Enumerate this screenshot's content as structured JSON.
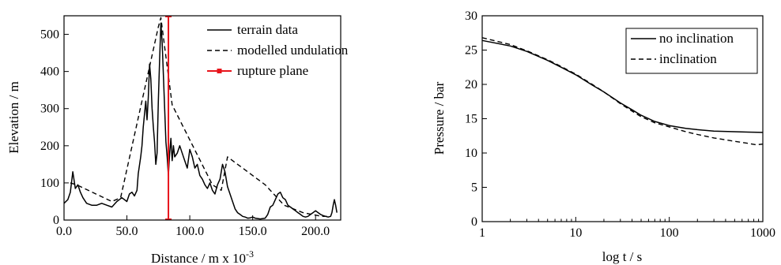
{
  "chart_data": [
    {
      "type": "line",
      "xlabel": "Distance / m x 10",
      "xlabel_sup": "-3",
      "ylabel": "Elevation / m",
      "xlim": [
        0,
        220
      ],
      "ylim": [
        0,
        550
      ],
      "xticks": [
        0,
        50,
        100,
        150,
        200
      ],
      "xtick_labels": [
        "0.0",
        "50.0",
        "100.0",
        "150.0",
        "200.0"
      ],
      "yticks": [
        0,
        100,
        200,
        300,
        400,
        500
      ],
      "ytick_labels": [
        "0",
        "100",
        "200",
        "300",
        "400",
        "500"
      ],
      "legend_position": "top-right",
      "series": [
        {
          "name": "terrain data",
          "style": "solid",
          "color": "#000000",
          "x": [
            0,
            3,
            5,
            7,
            9,
            11,
            13,
            15,
            18,
            22,
            26,
            30,
            34,
            38,
            42,
            46,
            48,
            50,
            52,
            54,
            56,
            58,
            59,
            61,
            62,
            63,
            65,
            66,
            67,
            68,
            69,
            70,
            71,
            72,
            73,
            74,
            75,
            76,
            77,
            78,
            79,
            80,
            81,
            82,
            83,
            84,
            85,
            86,
            87,
            88,
            90,
            92,
            94,
            96,
            98,
            100,
            102,
            104,
            106,
            108,
            110,
            112,
            114,
            116,
            118,
            120,
            122,
            124,
            126,
            128,
            130,
            132,
            134,
            136,
            138,
            140,
            142,
            144,
            146,
            148,
            150,
            152,
            154,
            156,
            158,
            160,
            162,
            164,
            166,
            168,
            170,
            172,
            174,
            176,
            178,
            180,
            182,
            184,
            186,
            188,
            190,
            192,
            194,
            196,
            198,
            200,
            202,
            204,
            206,
            208,
            210,
            212,
            213,
            214,
            215,
            216,
            217
          ],
          "y": [
            45,
            55,
            75,
            130,
            85,
            95,
            75,
            60,
            45,
            40,
            40,
            45,
            40,
            35,
            50,
            60,
            55,
            50,
            70,
            75,
            65,
            80,
            125,
            170,
            200,
            250,
            320,
            270,
            330,
            420,
            380,
            300,
            250,
            210,
            150,
            180,
            320,
            430,
            530,
            480,
            390,
            300,
            210,
            170,
            120,
            180,
            220,
            160,
            200,
            170,
            180,
            200,
            180,
            160,
            140,
            190,
            170,
            140,
            150,
            120,
            110,
            95,
            85,
            100,
            80,
            70,
            95,
            110,
            150,
            130,
            90,
            70,
            50,
            30,
            20,
            15,
            10,
            8,
            5,
            6,
            8,
            5,
            4,
            3,
            4,
            5,
            15,
            35,
            40,
            55,
            70,
            75,
            60,
            55,
            40,
            35,
            30,
            25,
            20,
            15,
            10,
            8,
            10,
            15,
            20,
            25,
            20,
            15,
            12,
            10,
            8,
            10,
            20,
            40,
            55,
            40,
            20
          ]
        },
        {
          "name": "modelled undulation",
          "style": "dashed",
          "color": "#000000",
          "x": [
            5,
            10,
            38,
            45,
            75,
            77,
            86,
            118,
            125,
            130,
            160,
            175,
            190,
            205,
            210
          ],
          "y": [
            100,
            95,
            50,
            60,
            520,
            545,
            310,
            95,
            80,
            170,
            95,
            40,
            20,
            10,
            10
          ]
        },
        {
          "name": "rupture plane",
          "style": "solid-marker",
          "color": "#e8141b",
          "x": [
            83,
            83
          ],
          "y": [
            2,
            548
          ]
        }
      ]
    },
    {
      "type": "line",
      "xlabel": "log t / s",
      "ylabel": "Pressure / bar",
      "xscale": "log",
      "xlim": [
        1,
        1000
      ],
      "ylim": [
        0,
        30
      ],
      "xticks": [
        1,
        10,
        100,
        1000
      ],
      "xtick_labels": [
        "1",
        "10",
        "100",
        "1000"
      ],
      "yticks": [
        0,
        5,
        10,
        15,
        20,
        25,
        30
      ],
      "ytick_labels": [
        "0",
        "5",
        "10",
        "15",
        "20",
        "25",
        "30"
      ],
      "legend_position": "top-right",
      "series": [
        {
          "name": "no inclination",
          "style": "solid",
          "color": "#000000",
          "x": [
            1,
            2,
            3,
            5,
            7,
            10,
            15,
            20,
            30,
            40,
            50,
            70,
            100,
            150,
            200,
            300,
            500,
            700,
            1000
          ],
          "y": [
            26.4,
            25.6,
            24.8,
            23.5,
            22.5,
            21.4,
            19.9,
            18.9,
            17.3,
            16.3,
            15.5,
            14.6,
            14.0,
            13.6,
            13.4,
            13.2,
            13.1,
            13.05,
            13.0
          ]
        },
        {
          "name": "inclination",
          "style": "dashed",
          "color": "#000000",
          "x": [
            1,
            2,
            3,
            5,
            7,
            10,
            15,
            20,
            30,
            40,
            50,
            70,
            100,
            150,
            200,
            300,
            500,
            700,
            850,
            1000
          ],
          "y": [
            26.8,
            25.8,
            24.9,
            23.6,
            22.6,
            21.5,
            20.0,
            18.9,
            17.2,
            16.1,
            15.3,
            14.4,
            13.8,
            13.1,
            12.7,
            12.2,
            11.7,
            11.4,
            11.2,
            11.3
          ]
        }
      ]
    }
  ]
}
